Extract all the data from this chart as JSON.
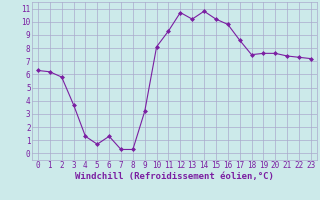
{
  "x_values": [
    0,
    1,
    2,
    3,
    4,
    5,
    6,
    7,
    8,
    9,
    10,
    11,
    12,
    13,
    14,
    15,
    16,
    17,
    18,
    19,
    20,
    21,
    22,
    23
  ],
  "y_values": [
    6.3,
    6.2,
    5.8,
    3.7,
    1.3,
    0.7,
    1.3,
    0.3,
    0.3,
    3.2,
    8.1,
    9.3,
    10.7,
    10.2,
    10.8,
    10.2,
    9.8,
    8.6,
    7.5,
    7.6,
    7.6,
    7.4,
    7.3,
    7.2
  ],
  "xlim": [
    -0.5,
    23.5
  ],
  "ylim": [
    -0.5,
    11.5
  ],
  "yticks": [
    0,
    1,
    2,
    3,
    4,
    5,
    6,
    7,
    8,
    9,
    10,
    11
  ],
  "xticks": [
    0,
    1,
    2,
    3,
    4,
    5,
    6,
    7,
    8,
    9,
    10,
    11,
    12,
    13,
    14,
    15,
    16,
    17,
    18,
    19,
    20,
    21,
    22,
    23
  ],
  "xlabel": "Windchill (Refroidissement éolien,°C)",
  "line_color": "#7b1fa2",
  "marker": "D",
  "marker_size": 2.0,
  "bg_color": "#cceaea",
  "grid_color": "#aaaacc",
  "tick_label_fontsize": 5.5,
  "xlabel_fontsize": 6.5
}
